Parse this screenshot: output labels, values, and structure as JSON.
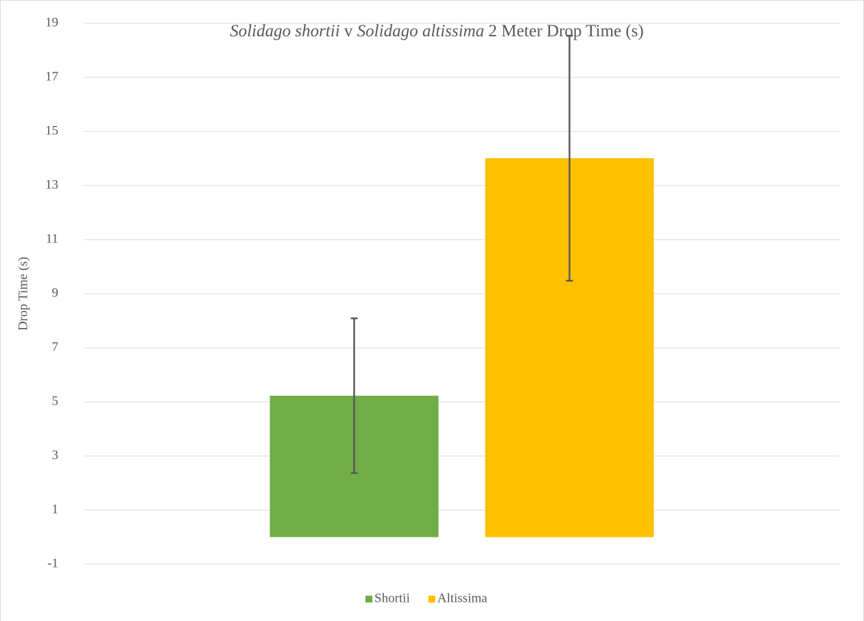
{
  "chart_data": {
    "type": "bar",
    "title": [
      {
        "text": "Solidago shortii",
        "italic": true
      },
      {
        "text": " v ",
        "italic": false
      },
      {
        "text": "Solidago altissima",
        "italic": true
      },
      {
        "text": " 2 Meter Drop Time (s)",
        "italic": false
      }
    ],
    "y_label": "Drop Time (s)",
    "categories": [
      null
    ],
    "series": [
      {
        "name": "Shortii",
        "color": "#70ad47",
        "values": [
          5.23
        ],
        "errors": [
          2.86
        ]
      },
      {
        "name": "Altissima",
        "color": "#ffc000",
        "values": [
          14.01
        ],
        "errors": [
          4.53
        ]
      }
    ],
    "ylim": [
      -1,
      19
    ],
    "yticks": [
      -1,
      1,
      3,
      5,
      7,
      9,
      11,
      13,
      15,
      17,
      19
    ],
    "grid": true,
    "legend": "bottom"
  }
}
